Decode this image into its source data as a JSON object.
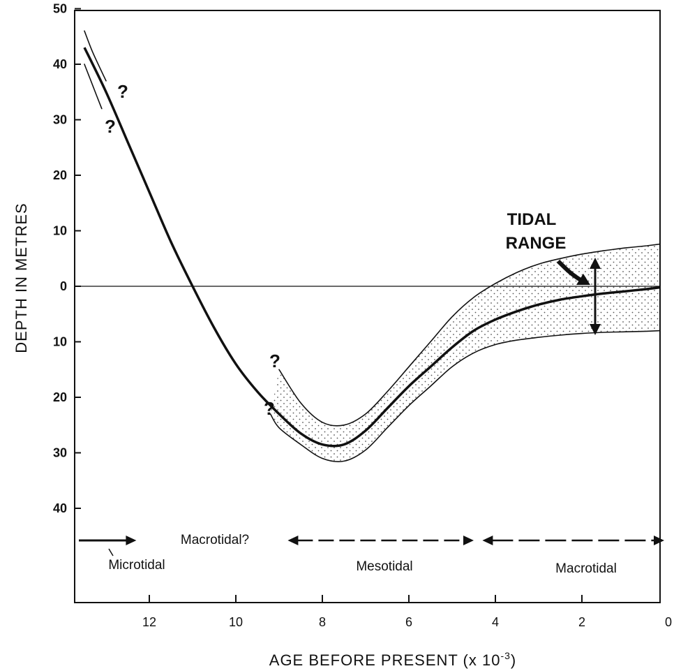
{
  "chart_data": {
    "type": "line",
    "title": "",
    "xlabel": "AGE BEFORE PRESENT (x 10",
    "xlabel_exp": "-3",
    "xlabel_close": ")",
    "ylabel": "DEPTH IN METRES",
    "xlim": [
      13.5,
      0
    ],
    "ylim": [
      -50,
      57
    ],
    "y_ticks": [
      {
        "value": -50,
        "label": "50"
      },
      {
        "value": -40,
        "label": "40"
      },
      {
        "value": -30,
        "label": "30"
      },
      {
        "value": -20,
        "label": "20"
      },
      {
        "value": -10,
        "label": "10"
      },
      {
        "value": 0,
        "label": "0"
      },
      {
        "value": 10,
        "label": "10"
      },
      {
        "value": 20,
        "label": "20"
      },
      {
        "value": 30,
        "label": "30"
      },
      {
        "value": 40,
        "label": "40"
      }
    ],
    "x_ticks": [
      {
        "value": 12,
        "label": "12"
      },
      {
        "value": 10,
        "label": "10"
      },
      {
        "value": 8,
        "label": "8"
      },
      {
        "value": 6,
        "label": "6"
      },
      {
        "value": 4,
        "label": "4"
      },
      {
        "value": 2,
        "label": "2"
      },
      {
        "value": 0,
        "label": "0"
      }
    ],
    "grid": false,
    "zero_line": true,
    "series": [
      {
        "role": "mean",
        "x": [
          13.5,
          13.0,
          12.5,
          12.0,
          11.5,
          11.0,
          10.5,
          10.0,
          9.5,
          9.0,
          8.5,
          8.0,
          7.5,
          7.0,
          6.5,
          6.0,
          5.5,
          5.0,
          4.5,
          4.0,
          3.5,
          3.0,
          2.5,
          2.0,
          1.5,
          1.0,
          0.5,
          0.0
        ],
        "y": [
          -43,
          -35,
          -26,
          -17,
          -8,
          0,
          7.5,
          14,
          19,
          23,
          26.5,
          28.5,
          28.5,
          26,
          22,
          18,
          14.5,
          11,
          8,
          6,
          4.5,
          3.3,
          2.4,
          1.8,
          1.3,
          0.9,
          0.5,
          0.2
        ]
      },
      {
        "role": "upper-bound",
        "x": [
          13.5,
          13.3,
          13.0,
          9.0,
          8.5,
          8.0,
          7.5,
          7.0,
          6.5,
          6.0,
          5.5,
          5.0,
          4.5,
          4.0,
          3.5,
          3.0,
          2.5,
          2.0,
          1.5,
          1.0,
          0.5,
          0.0
        ],
        "y": [
          -46,
          -42,
          -37,
          15,
          21,
          24.5,
          25,
          23,
          19,
          14.5,
          10,
          5.5,
          2,
          -0.5,
          -2.5,
          -4,
          -5,
          -5.8,
          -6.4,
          -6.9,
          -7.3,
          -7.6
        ]
      },
      {
        "role": "lower-bound",
        "x": [
          13.5,
          13.3,
          13.1,
          9.2,
          9.0,
          8.5,
          8.0,
          7.5,
          7.0,
          6.5,
          6.0,
          5.5,
          5.0,
          4.5,
          4.0,
          3.5,
          3.0,
          2.5,
          2.0,
          1.5,
          1.0,
          0.5,
          0.0
        ],
        "y": [
          -40,
          -36,
          -32,
          23,
          25.5,
          28.5,
          31,
          31.5,
          29.5,
          25.5,
          21.5,
          18,
          14.5,
          12,
          10.5,
          9.7,
          9.2,
          8.8,
          8.5,
          8.3,
          8.2,
          8.1,
          8.0
        ]
      }
    ],
    "annotations": {
      "question_marks": [
        "?",
        "?",
        "?",
        "?"
      ],
      "tidal_range_line1": "TIDAL",
      "tidal_range_line2": "RANGE"
    },
    "tidal_regimes": [
      {
        "label": "Microtidal",
        "from": 13.5,
        "to": 12.3
      },
      {
        "label": "Macrotidal?",
        "from": 12.3,
        "to": 8.8
      },
      {
        "label": "Mesotidal",
        "from": 8.8,
        "to": 4.5
      },
      {
        "label": "Macrotidal",
        "from": 4.3,
        "to": 0
      }
    ]
  }
}
